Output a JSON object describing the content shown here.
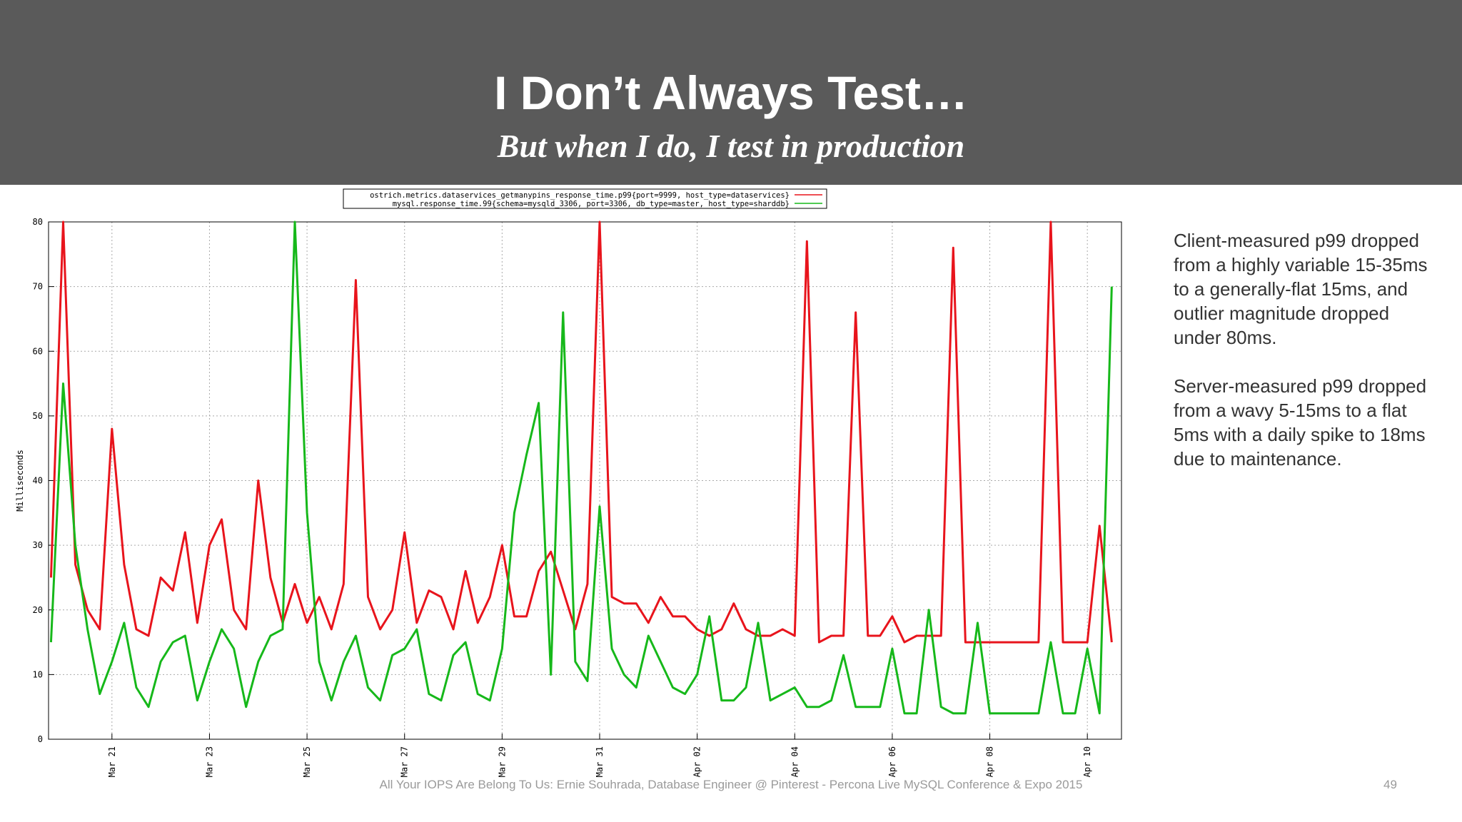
{
  "header": {
    "title": "I Don’t Always Test…",
    "subtitle": "But when I do, I test in production"
  },
  "chart_data": {
    "type": "line",
    "ylabel": "Milliseconds",
    "x": [
      19.75,
      20,
      20.25,
      20.5,
      20.75,
      21,
      21.25,
      21.5,
      21.75,
      22,
      22.25,
      22.5,
      22.75,
      23,
      23.25,
      23.5,
      23.75,
      24,
      24.25,
      24.5,
      24.75,
      25,
      25.25,
      25.5,
      25.75,
      26,
      26.25,
      26.5,
      26.75,
      27,
      27.25,
      27.5,
      27.75,
      28,
      28.25,
      28.5,
      28.75,
      29,
      29.25,
      29.5,
      29.75,
      30,
      30.25,
      30.5,
      30.75,
      31,
      31.25,
      31.5,
      31.75,
      32,
      32.25,
      32.5,
      32.75,
      33,
      33.25,
      33.5,
      33.75,
      34,
      34.25,
      34.5,
      34.75,
      35,
      35.25,
      35.5,
      35.75,
      36,
      36.25,
      36.5,
      36.75,
      37,
      37.25,
      37.5,
      37.75,
      38,
      38.25,
      38.5,
      38.75,
      39,
      39.25,
      39.5,
      39.75,
      40,
      40.25,
      40.5,
      40.75,
      41,
      41.25,
      41.5
    ],
    "series": [
      {
        "name": "ostrich.metrics.dataservices_getmanypins_response_time.p99{port=9999, host_type=dataservices}",
        "color": "#e8141c",
        "values": [
          25,
          80,
          27,
          20,
          17,
          48,
          27,
          17,
          16,
          25,
          23,
          32,
          18,
          30,
          34,
          20,
          17,
          40,
          25,
          18,
          24,
          18,
          22,
          17,
          24,
          71,
          22,
          17,
          20,
          32,
          18,
          23,
          22,
          17,
          26,
          18,
          22,
          30,
          19,
          19,
          26,
          29,
          23,
          17,
          24,
          80,
          22,
          21,
          21,
          18,
          22,
          19,
          19,
          17,
          16,
          17,
          21,
          17,
          16,
          16,
          17,
          16,
          77,
          15,
          16,
          16,
          66,
          16,
          16,
          19,
          15,
          16,
          16,
          16,
          76,
          15,
          15,
          15,
          15,
          15,
          15,
          15,
          80,
          15,
          15,
          15,
          33,
          15
        ]
      },
      {
        "name": "mysql.response_time.99{schema=mysqld_3306, port=3306, db_type=master, host_type=sharddb}",
        "color": "#16b81a",
        "values": [
          15,
          55,
          30,
          17,
          7,
          12,
          18,
          8,
          5,
          12,
          15,
          16,
          6,
          12,
          17,
          14,
          5,
          12,
          16,
          17,
          80,
          35,
          12,
          6,
          12,
          16,
          8,
          6,
          13,
          14,
          17,
          7,
          6,
          13,
          15,
          7,
          6,
          14,
          35,
          44,
          52,
          10,
          66,
          12,
          9,
          36,
          14,
          10,
          8,
          16,
          12,
          8,
          7,
          10,
          19,
          6,
          6,
          8,
          18,
          6,
          7,
          8,
          5,
          5,
          6,
          13,
          5,
          5,
          5,
          14,
          4,
          4,
          20,
          5,
          4,
          4,
          18,
          4,
          4,
          4,
          4,
          4,
          15,
          4,
          4,
          14,
          4,
          70
        ]
      }
    ],
    "xlim": [
      19.7,
      41.7
    ],
    "xticks": [
      {
        "value": 21,
        "label": "Mar 21"
      },
      {
        "value": 23,
        "label": "Mar 23"
      },
      {
        "value": 25,
        "label": "Mar 25"
      },
      {
        "value": 27,
        "label": "Mar 27"
      },
      {
        "value": 29,
        "label": "Mar 29"
      },
      {
        "value": 31,
        "label": "Mar 31"
      },
      {
        "value": 33,
        "label": "Apr 02"
      },
      {
        "value": 35,
        "label": "Apr 04"
      },
      {
        "value": 37,
        "label": "Apr 06"
      },
      {
        "value": 39,
        "label": "Apr 08"
      },
      {
        "value": 41,
        "label": "Apr 10"
      }
    ],
    "ylim": [
      0,
      80
    ],
    "yticks": [
      0,
      10,
      20,
      30,
      40,
      50,
      60,
      70,
      80
    ],
    "grid": true,
    "legend": "top"
  },
  "notes": [
    "Client-measured p99 dropped from a highly variable 15-35ms to a generally-flat 15ms, and outlier magnitude dropped under 80ms.",
    "Server-measured p99 dropped from a wavy 5-15ms to a flat 5ms with a daily spike to 18ms due to maintenance."
  ],
  "footer": {
    "text": "All Your IOPS Are Belong To Us: Ernie Souhrada, Database Engineer @ Pinterest - Percona Live MySQL Conference & Expo 2015",
    "page": "49"
  }
}
